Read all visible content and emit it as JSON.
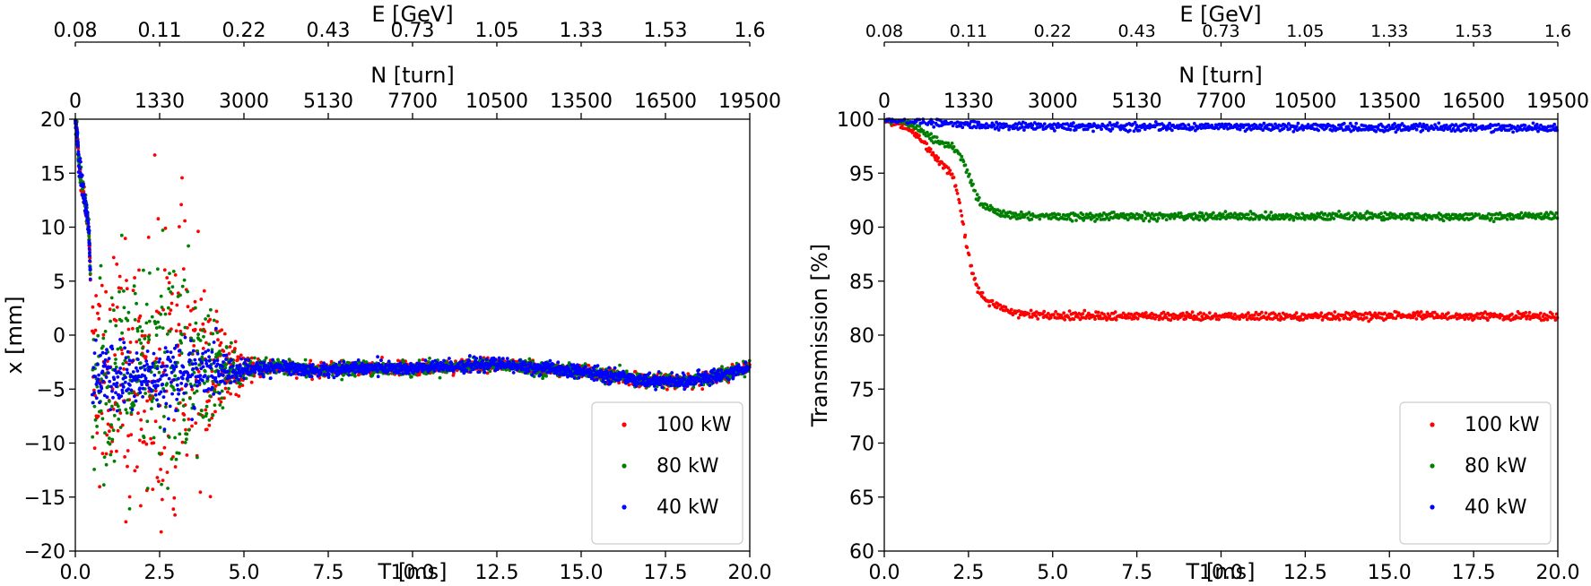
{
  "chart_data": [
    {
      "type": "scatter",
      "id": "left",
      "title": "",
      "xlabel": "T [ms]",
      "ylabel": "x [mm]",
      "xlim": [
        0,
        20
      ],
      "ylim": [
        -20,
        20
      ],
      "xticks": [
        0,
        2.5,
        5,
        7.5,
        10,
        12.5,
        15,
        17.5,
        20
      ],
      "xticklabels": [
        "0.0",
        "2.5",
        "5.0",
        "7.5",
        "10.0",
        "12.5",
        "15.0",
        "17.5",
        "20.0"
      ],
      "yticks": [
        -20,
        -15,
        -10,
        -5,
        0,
        5,
        10,
        15,
        20
      ],
      "yticklabels": [
        "−20",
        "−15",
        "−10",
        "−5",
        "0",
        "5",
        "10",
        "15",
        "20"
      ],
      "top_axes": [
        {
          "label": "N [turn]",
          "ticks": [
            "0",
            "1330",
            "3000",
            "5130",
            "7700",
            "10500",
            "13500",
            "16500",
            "19500"
          ]
        },
        {
          "label": "E [GeV]",
          "ticks": [
            "0.08",
            "0.11",
            "0.22",
            "0.43",
            "0.73",
            "1.05",
            "1.33",
            "1.53",
            "1.6"
          ]
        }
      ],
      "legend": {
        "placement": "lower-right",
        "entries": [
          "100 kW",
          "80 kW",
          "40 kW"
        ]
      },
      "series": [
        {
          "name": "100 kW",
          "color": "#ff0000",
          "spread_points": [
            [
              0.5,
              4
            ],
            [
              1.0,
              5
            ],
            [
              1.5,
              6
            ],
            [
              2.0,
              5
            ],
            [
              2.5,
              8
            ],
            [
              2.8,
              10
            ],
            [
              3.1,
              7
            ],
            [
              3.5,
              5
            ],
            [
              4.0,
              4
            ],
            [
              4.5,
              2
            ],
            [
              5.0,
              0.5
            ],
            [
              6.0,
              0.3
            ],
            [
              20.0,
              0.3
            ]
          ]
        },
        {
          "name": "80 kW",
          "color": "#008000",
          "spread_points": [
            [
              0.5,
              3.5
            ],
            [
              1.0,
              4.5
            ],
            [
              1.5,
              5
            ],
            [
              2.0,
              4.5
            ],
            [
              2.5,
              6.5
            ],
            [
              2.8,
              8
            ],
            [
              3.1,
              6
            ],
            [
              3.5,
              4
            ],
            [
              4.0,
              3
            ],
            [
              4.5,
              1.5
            ],
            [
              5.0,
              0.5
            ],
            [
              6.0,
              0.3
            ],
            [
              20.0,
              0.3
            ]
          ]
        },
        {
          "name": "40 kW",
          "color": "#0000ff",
          "spread_points": [
            [
              0.5,
              1.5
            ],
            [
              1.0,
              1.6
            ],
            [
              1.5,
              1.6
            ],
            [
              2.0,
              1.3
            ],
            [
              2.5,
              1.6
            ],
            [
              3.0,
              1.6
            ],
            [
              3.5,
              1.4
            ],
            [
              4.0,
              1.2
            ],
            [
              4.5,
              0.8
            ],
            [
              5.0,
              0.4
            ],
            [
              6.0,
              0.3
            ],
            [
              20.0,
              0.3
            ]
          ]
        }
      ],
      "centerline": [
        [
          0.5,
          -4
        ],
        [
          2.0,
          -4
        ],
        [
          3.5,
          -3.5
        ],
        [
          5.0,
          -3.3
        ],
        [
          6.0,
          -2.9
        ],
        [
          7.0,
          -3.3
        ],
        [
          8.0,
          -3.1
        ],
        [
          9.0,
          -3.0
        ],
        [
          10.0,
          -3.1
        ],
        [
          11.0,
          -2.9
        ],
        [
          12.5,
          -2.7
        ],
        [
          13.5,
          -3.0
        ],
        [
          15.0,
          -3.4
        ],
        [
          16.0,
          -3.8
        ],
        [
          17.0,
          -4.2
        ],
        [
          18.0,
          -4.3
        ],
        [
          19.0,
          -3.8
        ],
        [
          20.0,
          -3.0
        ]
      ],
      "early_orbit": [
        [
          0.0,
          20
        ],
        [
          0.05,
          19
        ],
        [
          0.1,
          16
        ],
        [
          0.2,
          14
        ],
        [
          0.3,
          12
        ],
        [
          0.4,
          10
        ],
        [
          0.45,
          5
        ]
      ]
    },
    {
      "type": "scatter",
      "id": "right",
      "title": "",
      "xlabel": "T [ms]",
      "ylabel": "Transmission [%]",
      "xlim": [
        0,
        20
      ],
      "ylim": [
        60,
        100
      ],
      "xticks": [
        0,
        2.5,
        5,
        7.5,
        10,
        12.5,
        15,
        17.5,
        20
      ],
      "xticklabels": [
        "0.0",
        "2.5",
        "5.0",
        "7.5",
        "10.0",
        "12.5",
        "15.0",
        "17.5",
        "20.0"
      ],
      "yticks": [
        60,
        65,
        70,
        75,
        80,
        85,
        90,
        95,
        100
      ],
      "yticklabels": [
        "60",
        "65",
        "70",
        "75",
        "80",
        "85",
        "90",
        "95",
        "100"
      ],
      "top_axes": [
        {
          "label": "N [turn]",
          "ticks": [
            "0",
            "1330",
            "3000",
            "5130",
            "7700",
            "10500",
            "13500",
            "16500",
            "19500"
          ]
        },
        {
          "label": "E [GeV]",
          "ticks": [
            "0.08",
            "0.11",
            "0.22",
            "0.43",
            "0.73",
            "1.05",
            "1.33",
            "1.53",
            "1.6"
          ]
        }
      ],
      "legend": {
        "placement": "lower-right",
        "entries": [
          "100 kW",
          "80 kW",
          "40 kW"
        ]
      },
      "series": [
        {
          "name": "100 kW",
          "color": "#ff0000",
          "points": [
            [
              0,
              100
            ],
            [
              0.5,
              99.5
            ],
            [
              1.0,
              98.5
            ],
            [
              1.5,
              96.5
            ],
            [
              2.0,
              95
            ],
            [
              2.2,
              93
            ],
            [
              2.4,
              89
            ],
            [
              2.6,
              86
            ],
            [
              2.8,
              84
            ],
            [
              3.0,
              83.3
            ],
            [
              3.5,
              82.5
            ],
            [
              4.0,
              82
            ],
            [
              5.0,
              81.8
            ],
            [
              10.0,
              81.7
            ],
            [
              15.0,
              81.8
            ],
            [
              20.0,
              81.7
            ]
          ]
        },
        {
          "name": "80 kW",
          "color": "#008000",
          "points": [
            [
              0,
              100
            ],
            [
              0.5,
              99.8
            ],
            [
              1.0,
              99.2
            ],
            [
              1.5,
              98
            ],
            [
              2.0,
              97.5
            ],
            [
              2.3,
              96.5
            ],
            [
              2.6,
              94
            ],
            [
              2.8,
              92.5
            ],
            [
              3.0,
              91.8
            ],
            [
              3.5,
              91.2
            ],
            [
              4.0,
              91
            ],
            [
              6.0,
              91
            ],
            [
              10.0,
              91
            ],
            [
              15.0,
              91
            ],
            [
              20.0,
              91
            ]
          ]
        },
        {
          "name": "40 kW",
          "color": "#0000ff",
          "points": [
            [
              0,
              100
            ],
            [
              1.0,
              99.9
            ],
            [
              2.0,
              99.6
            ],
            [
              3.0,
              99.4
            ],
            [
              5.0,
              99.3
            ],
            [
              10.0,
              99.3
            ],
            [
              15.0,
              99.2
            ],
            [
              20.0,
              99.2
            ]
          ]
        }
      ]
    }
  ]
}
